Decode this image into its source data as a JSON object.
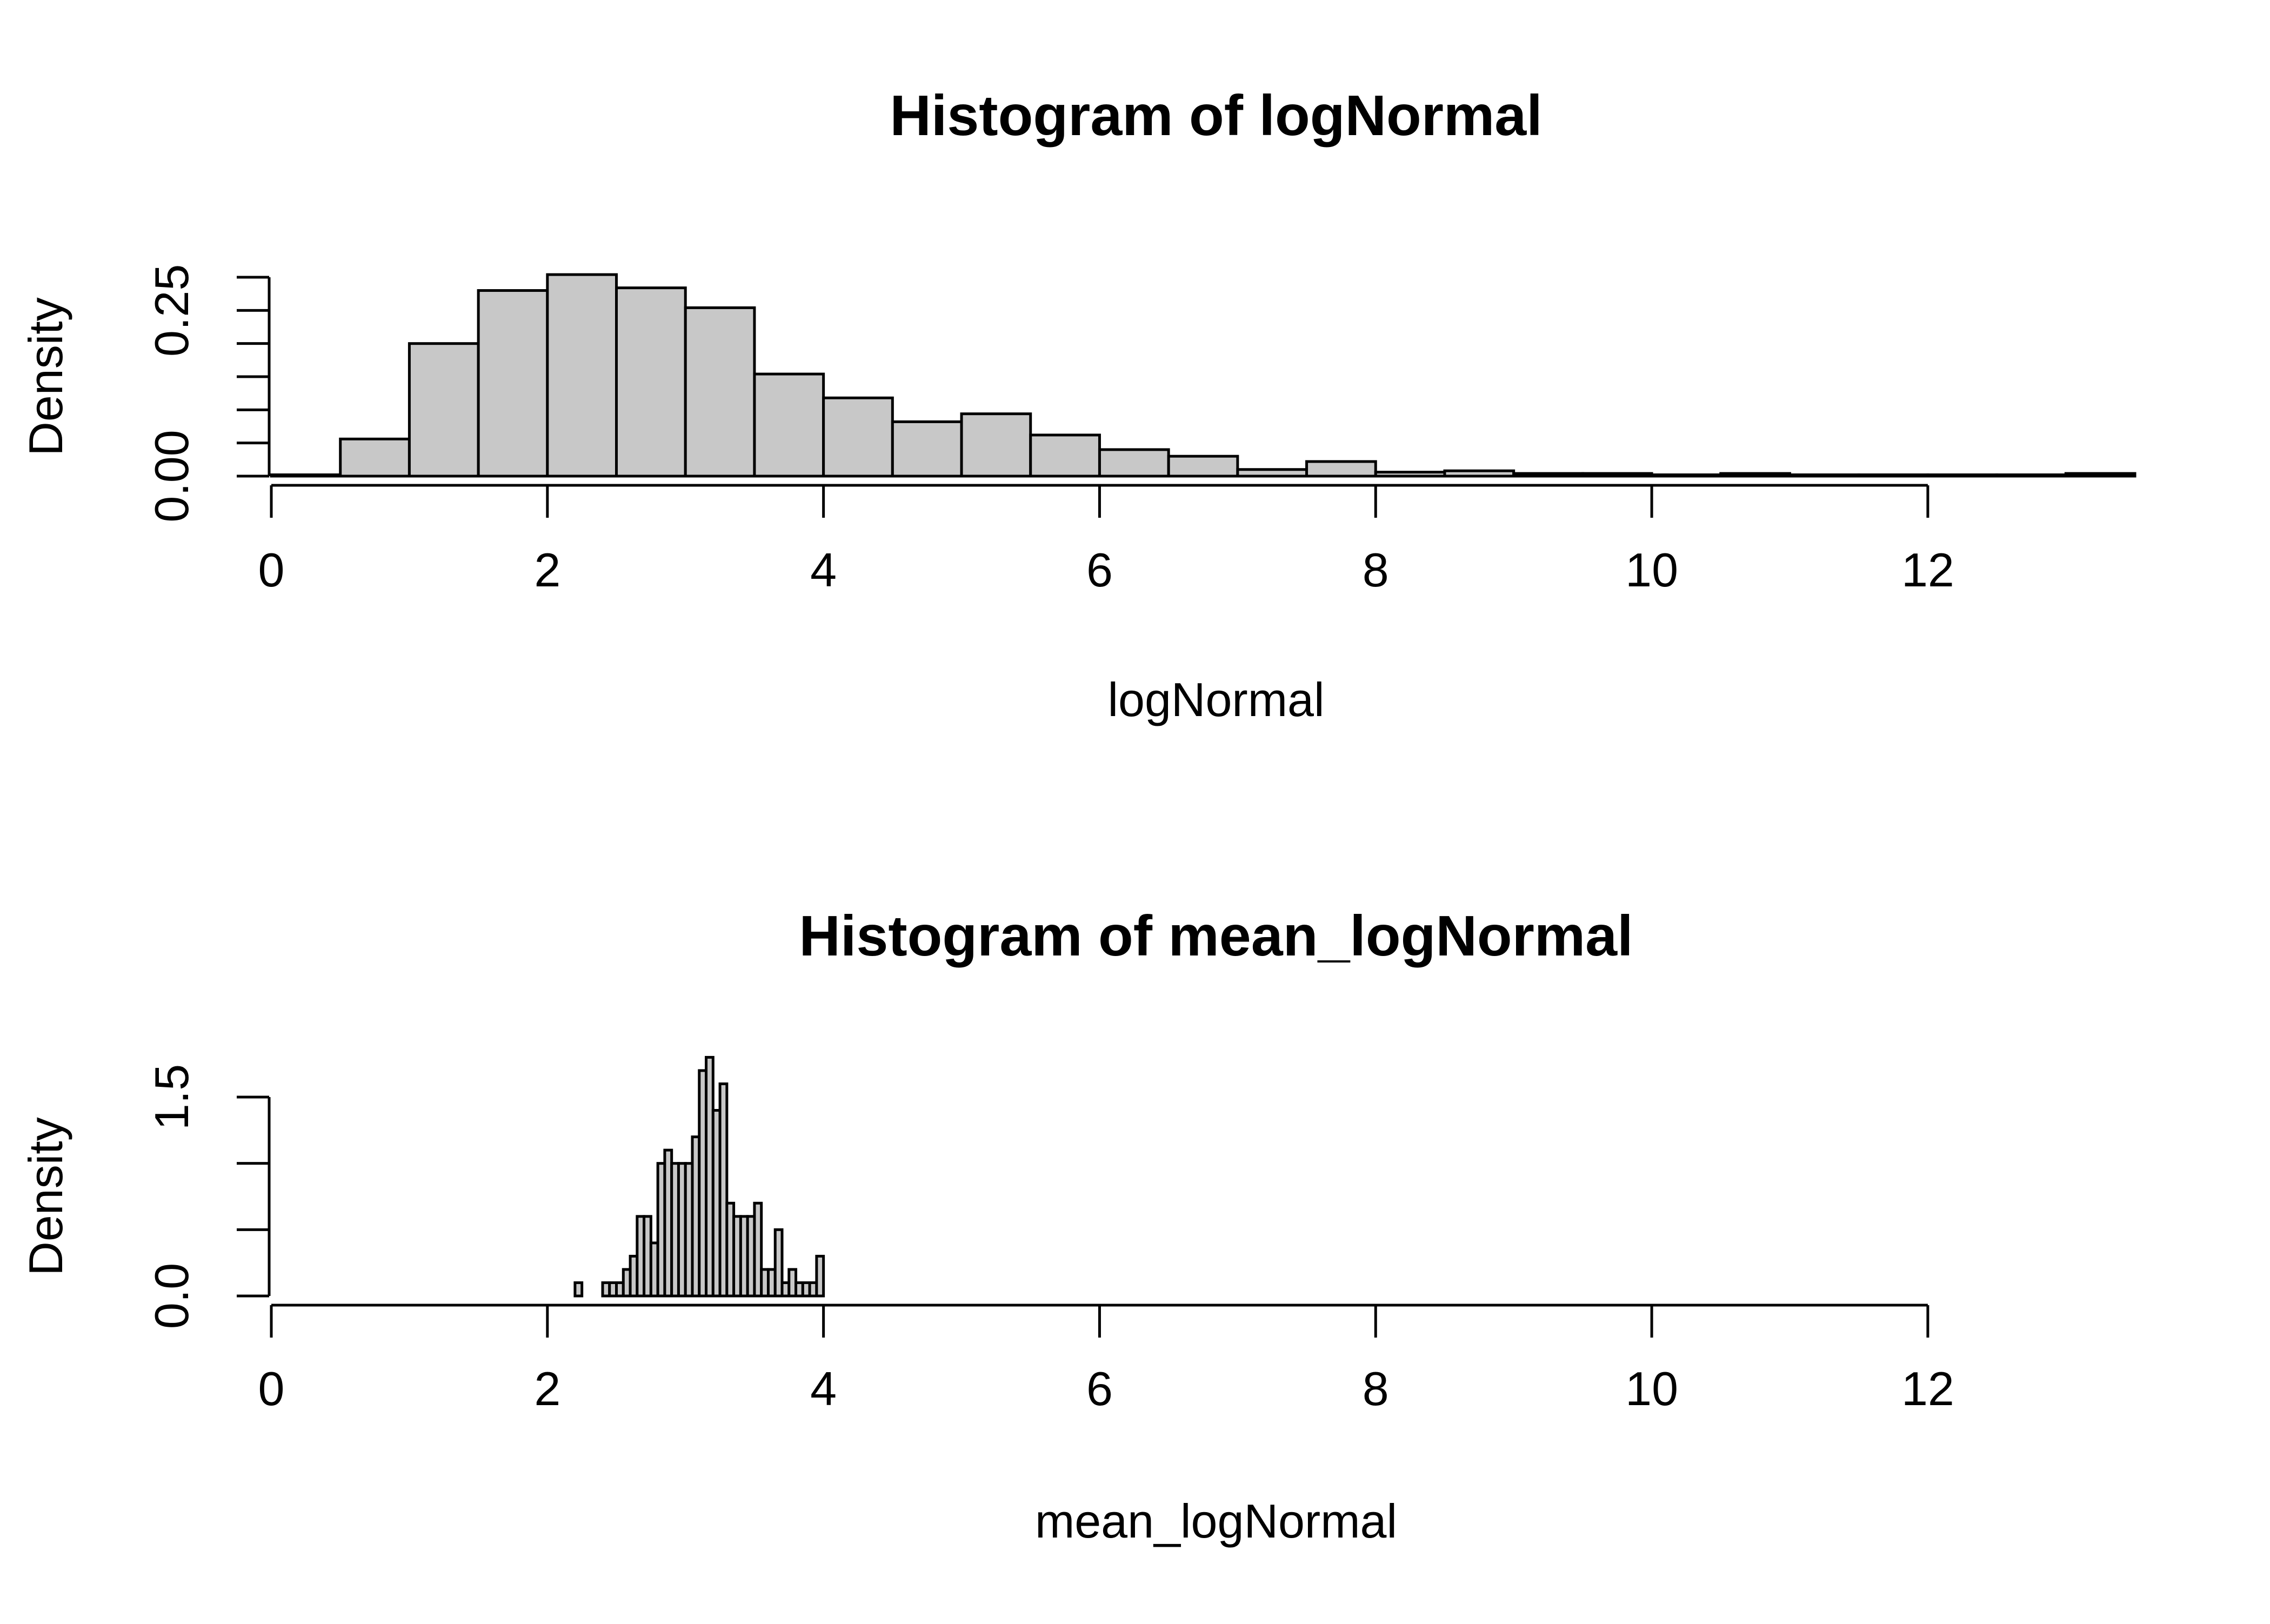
{
  "chart_data": [
    {
      "type": "histogram",
      "title": "Histogram of logNormal",
      "xlabel": "logNormal",
      "ylabel": "Density",
      "xlim": [
        0,
        13.5
      ],
      "ylim": [
        0,
        0.3
      ],
      "x_ticks": [
        0,
        2,
        4,
        6,
        8,
        10,
        12
      ],
      "x_tick_labels": [
        "0",
        "2",
        "4",
        "6",
        "8",
        "10",
        "12"
      ],
      "y_ticks": [
        0,
        0.05,
        0.1,
        0.15,
        0.2,
        0.25,
        0.3
      ],
      "y_tick_labels": [
        "0.00",
        "",
        "",
        "",
        "",
        "0.25",
        ""
      ],
      "bin_edges": [
        0,
        0.5,
        1,
        1.5,
        2,
        2.5,
        3,
        3.5,
        4,
        4.5,
        5,
        5.5,
        6,
        6.5,
        7,
        7.5,
        8,
        8.5,
        9,
        9.5,
        10,
        10.5,
        11,
        11.5,
        12,
        12.5,
        13,
        13.5
      ],
      "values": [
        0.002,
        0.056,
        0.2,
        0.28,
        0.304,
        0.284,
        0.254,
        0.154,
        0.118,
        0.082,
        0.094,
        0.062,
        0.04,
        0.03,
        0.01,
        0.022,
        0.006,
        0.008,
        0.004,
        0.004,
        0.002,
        0.004,
        0.002,
        0.002,
        0.002,
        0.002,
        0.004
      ],
      "grid": false
    },
    {
      "type": "histogram",
      "title": "Histogram of mean_logNormal",
      "xlabel": "mean_logNormal",
      "ylabel": "Density",
      "xlim": [
        0,
        12
      ],
      "ylim": [
        0,
        1.8
      ],
      "x_ticks": [
        0,
        2,
        4,
        6,
        8,
        10,
        12
      ],
      "x_tick_labels": [
        "0",
        "2",
        "4",
        "6",
        "8",
        "10",
        "12"
      ],
      "y_ticks": [
        0,
        0.5,
        1,
        1.5
      ],
      "y_tick_labels": [
        "0.0",
        "",
        "",
        "1.5"
      ],
      "bin_edges": [
        2.2,
        2.25,
        2.3,
        2.35,
        2.4,
        2.45,
        2.5,
        2.55,
        2.6,
        2.65,
        2.7,
        2.75,
        2.8,
        2.85,
        2.9,
        2.95,
        3.0,
        3.05,
        3.1,
        3.15,
        3.2,
        3.25,
        3.3,
        3.35,
        3.4,
        3.45,
        3.5,
        3.55,
        3.6,
        3.65,
        3.7,
        3.75,
        3.8,
        3.85,
        3.9,
        3.95,
        4.0,
        4.05
      ],
      "values": [
        0.1,
        0,
        0,
        0,
        0.1,
        0.1,
        0.1,
        0.2,
        0.3,
        0.6,
        0.6,
        0.4,
        1.0,
        1.1,
        1.0,
        1.0,
        1.0,
        1.2,
        1.7,
        1.8,
        1.4,
        1.6,
        0.7,
        0.6,
        0.6,
        0.6,
        0.7,
        0.2,
        0.2,
        0.5,
        0.1,
        0.2,
        0.1,
        0.1,
        0.1,
        0.3,
        0.0
      ],
      "grid": false
    }
  ]
}
